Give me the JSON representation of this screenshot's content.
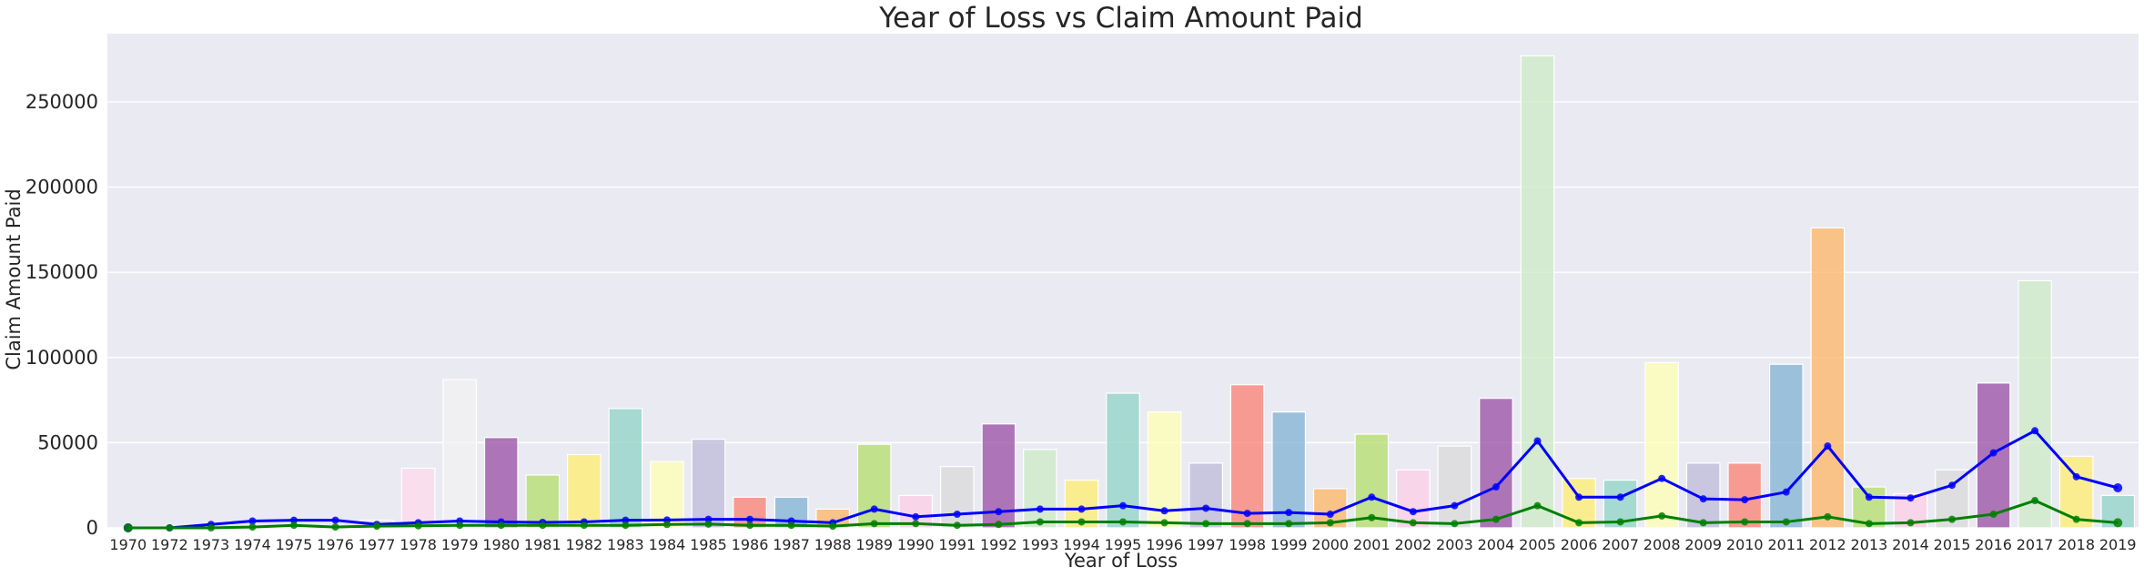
{
  "chart_data": {
    "type": "bar",
    "title": "Year of Loss vs Claim Amount Paid",
    "xlabel": "Year of Loss",
    "ylabel": "Claim Amount Paid",
    "ylim": [
      0,
      290000
    ],
    "yticks": [
      0,
      50000,
      100000,
      150000,
      200000,
      250000
    ],
    "grid": true,
    "categories": [
      "1970",
      "1972",
      "1973",
      "1974",
      "1975",
      "1976",
      "1977",
      "1978",
      "1979",
      "1980",
      "1981",
      "1982",
      "1983",
      "1984",
      "1985",
      "1986",
      "1987",
      "1988",
      "1989",
      "1990",
      "1991",
      "1992",
      "1993",
      "1994",
      "1995",
      "1996",
      "1997",
      "1998",
      "1999",
      "2000",
      "2001",
      "2002",
      "2003",
      "2004",
      "2005",
      "2006",
      "2007",
      "2008",
      "2009",
      "2010",
      "2011",
      "2012",
      "2013",
      "2014",
      "2015",
      "2016",
      "2017",
      "2018",
      "2019"
    ],
    "series": [
      {
        "kind": "bar",
        "values": [
          0,
          0,
          0,
          0,
          0,
          0,
          4500,
          35000,
          87000,
          53000,
          31000,
          43000,
          70000,
          39000,
          52000,
          18000,
          18000,
          11000,
          49000,
          19000,
          36000,
          61000,
          46000,
          28000,
          79000,
          68000,
          38000,
          84000,
          68000,
          23000,
          55000,
          34000,
          48000,
          76000,
          277000,
          29000,
          28000,
          97000,
          38000,
          38000,
          96000,
          176000,
          24000,
          20000,
          34000,
          85000,
          145000,
          42000,
          19000
        ]
      },
      {
        "kind": "line",
        "values": [
          0,
          0,
          2000,
          4000,
          4500,
          4500,
          2000,
          3000,
          4000,
          3500,
          3200,
          3500,
          4500,
          4600,
          5000,
          5000,
          4000,
          3000,
          11000,
          6500,
          8000,
          9500,
          11000,
          11000,
          13000,
          10000,
          11500,
          8500,
          9000,
          8000,
          18000,
          9500,
          13000,
          24000,
          51000,
          18000,
          18000,
          29000,
          17000,
          16500,
          21000,
          48000,
          18000,
          17500,
          25000,
          44000,
          57000,
          30000,
          23500
        ]
      },
      {
        "kind": "line",
        "values": [
          0,
          0,
          0,
          500,
          1500,
          500,
          1000,
          1200,
          1500,
          1500,
          1500,
          1500,
          1500,
          2000,
          2200,
          1500,
          1500,
          1000,
          2500,
          2500,
          1500,
          2000,
          3500,
          3500,
          3500,
          3000,
          2500,
          2500,
          2500,
          3000,
          6000,
          3000,
          2500,
          5000,
          13000,
          3000,
          3500,
          7000,
          3000,
          3500,
          3500,
          6500,
          2500,
          3000,
          5000,
          8000,
          16000,
          5000,
          3000
        ]
      }
    ],
    "colors": {
      "bars": [
        "#fbb4ae",
        "#b3cde3",
        "#ccebc5",
        "#decbe4",
        "#fed9a6",
        "#ffffcc",
        "#e5d8bd",
        "#fddaec",
        "#f2f2f2",
        "#984ea3",
        "#b3de69",
        "#ffed6f",
        "#8dd3c7",
        "#ffffb3",
        "#bebada",
        "#fb8072",
        "#80b1d3",
        "#fdb462",
        "#b3de69",
        "#fccde5",
        "#d9d9d9",
        "#984ea3",
        "#ccebc5",
        "#ffed6f",
        "#8dd3c7",
        "#ffffb3",
        "#bebada",
        "#fb8072",
        "#80b1d3",
        "#fdb462",
        "#b3de69",
        "#fccde5",
        "#d9d9d9",
        "#984ea3",
        "#ccebc5",
        "#ffed6f",
        "#8dd3c7",
        "#ffffb3",
        "#bebada",
        "#fb8072",
        "#80b1d3",
        "#fdb462",
        "#b3de69",
        "#fccde5",
        "#d9d9d9",
        "#984ea3",
        "#ccebc5",
        "#ffed6f",
        "#8dd3c7"
      ],
      "line_blue": "#0000ff",
      "line_green": "#008000",
      "plot_background": "#eaeaf2",
      "grid": "#ffffff"
    }
  }
}
